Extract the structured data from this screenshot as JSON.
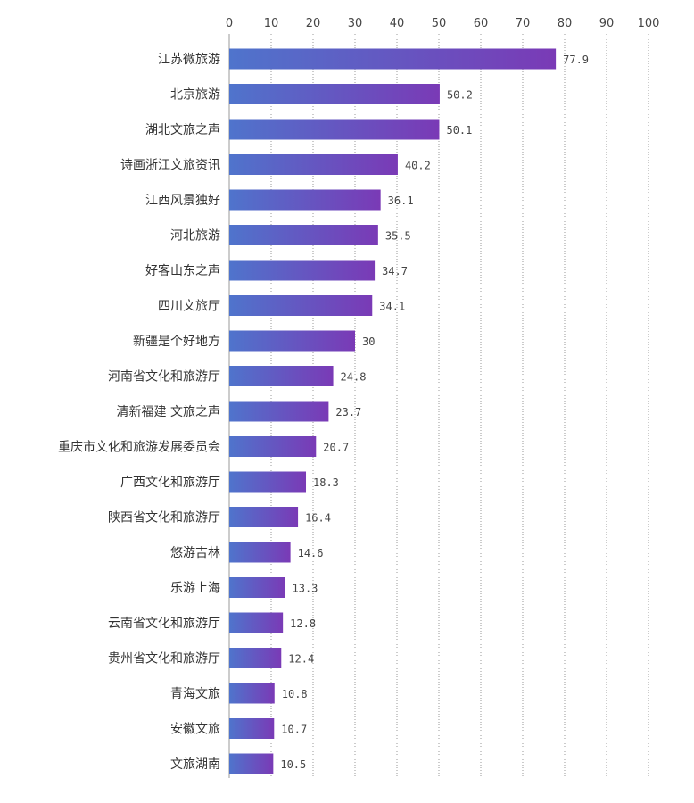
{
  "chart_data": {
    "type": "bar",
    "orientation": "horizontal",
    "categories": [
      "江苏微旅游",
      "北京旅游",
      "湖北文旅之声",
      "诗画浙江文旅资讯",
      "江西风景独好",
      "河北旅游",
      "好客山东之声",
      "四川文旅厅",
      "新疆是个好地方",
      "河南省文化和旅游厅",
      "清新福建 文旅之声",
      "重庆市文化和旅游发展委员会",
      "广西文化和旅游厅",
      "陕西省文化和旅游厅",
      "悠游吉林",
      "乐游上海",
      "云南省文化和旅游厅",
      "贵州省文化和旅游厅",
      "青海文旅",
      "安徽文旅",
      "文旅湖南"
    ],
    "values": [
      77.9,
      50.2,
      50.1,
      40.2,
      36.1,
      35.5,
      34.7,
      34.1,
      30,
      24.8,
      23.7,
      20.7,
      18.3,
      16.4,
      14.6,
      13.3,
      12.8,
      12.4,
      10.8,
      10.7,
      10.5
    ],
    "value_labels": [
      "77.9",
      "50.2",
      "50.1",
      "40.2",
      "36.1",
      "35.5",
      "34.7",
      "34.1",
      "30",
      "24.8",
      "23.7",
      "20.7",
      "18.3",
      "16.4",
      "14.6",
      "13.3",
      "12.8",
      "12.4",
      "10.8",
      "10.7",
      "10.5"
    ],
    "x_ticks": [
      "0",
      "10",
      "20",
      "30",
      "40",
      "50",
      "60",
      "70",
      "80",
      "90",
      "100"
    ],
    "xlim": [
      0,
      100
    ],
    "x_axis_position": "top",
    "grid": true,
    "legend": "none",
    "title": "",
    "xlabel": "",
    "ylabel": "",
    "colors": {
      "bar_start": "#4f74cc",
      "bar_end": "#7a3ab6",
      "grid": "#999999"
    }
  }
}
